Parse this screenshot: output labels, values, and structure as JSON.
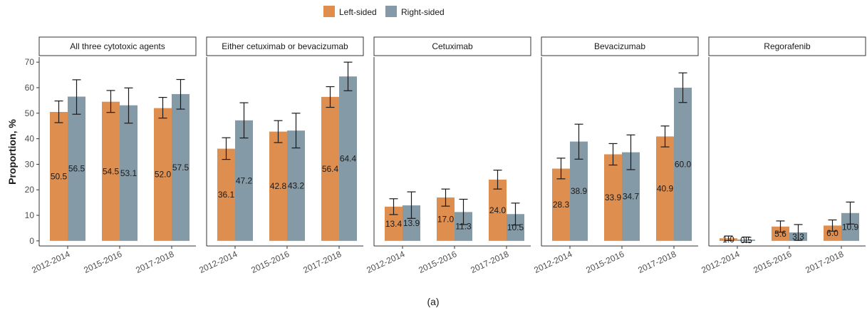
{
  "chart_data": {
    "type": "bar",
    "caption": "(a)",
    "ylabel": "Proportion, %",
    "xlabel": "",
    "ylim": [
      -2,
      72
    ],
    "yticks": [
      0,
      10,
      20,
      30,
      40,
      50,
      60,
      70
    ],
    "categories": [
      "2012-2014",
      "2015-2016",
      "2017-2018"
    ],
    "legend": {
      "position": "top",
      "entries": [
        {
          "name": "Left-sided",
          "color": "#de8f4f"
        },
        {
          "name": "Right-sided",
          "color": "#849aa7"
        }
      ]
    },
    "colors": {
      "left": "#de8f4f",
      "right": "#849aa7",
      "error_bar": "#1a1a1a",
      "axis": "#333333"
    },
    "panels": [
      {
        "title": "All three cytotoxic agents",
        "series": [
          {
            "name": "Left-sided",
            "values": [
              50.5,
              54.5,
              52.0
            ],
            "lower": [
              46.3,
              50.3,
              48.1
            ],
            "upper": [
              54.8,
              58.9,
              56.2
            ],
            "labels": [
              "50.5",
              "54.5",
              "52.0"
            ]
          },
          {
            "name": "Right-sided",
            "values": [
              56.5,
              53.1,
              57.5
            ],
            "lower": [
              49.6,
              46.1,
              51.6
            ],
            "upper": [
              63.1,
              59.9,
              63.2
            ],
            "labels": [
              "56.5",
              "53.1",
              "57.5"
            ]
          }
        ]
      },
      {
        "title": "Either cetuximab or bevacizumab",
        "series": [
          {
            "name": "Left-sided",
            "values": [
              36.1,
              42.8,
              56.4
            ],
            "lower": [
              31.9,
              38.5,
              52.3
            ],
            "upper": [
              40.4,
              47.1,
              60.4
            ],
            "labels": [
              "36.1",
              "42.8",
              "56.4"
            ]
          },
          {
            "name": "Right-sided",
            "values": [
              47.2,
              43.2,
              64.4
            ],
            "lower": [
              40.3,
              36.4,
              58.8
            ],
            "upper": [
              54.1,
              50.0,
              70.0
            ],
            "labels": [
              "47.2",
              "43.2",
              "64.4"
            ]
          }
        ]
      },
      {
        "title": "Cetuximab",
        "series": [
          {
            "name": "Left-sided",
            "values": [
              13.4,
              17.0,
              24.0
            ],
            "lower": [
              10.3,
              13.6,
              20.3
            ],
            "upper": [
              16.5,
              20.3,
              27.7
            ],
            "labels": [
              "13.4",
              "17.0",
              "24.0"
            ]
          },
          {
            "name": "Right-sided",
            "values": [
              13.9,
              11.3,
              10.5
            ],
            "lower": [
              8.8,
              6.4,
              6.2
            ],
            "upper": [
              19.2,
              16.3,
              14.8
            ],
            "labels": [
              "13.9",
              "11.3",
              "10.5"
            ]
          }
        ]
      },
      {
        "title": "Bevacizumab",
        "series": [
          {
            "name": "Left-sided",
            "values": [
              28.3,
              33.9,
              40.9
            ],
            "lower": [
              24.3,
              29.7,
              36.8
            ],
            "upper": [
              32.4,
              38.1,
              45.0
            ],
            "labels": [
              "28.3",
              "33.9",
              "40.9"
            ]
          },
          {
            "name": "Right-sided",
            "values": [
              38.9,
              34.7,
              60.0
            ],
            "lower": [
              32.0,
              27.9,
              54.2
            ],
            "upper": [
              45.7,
              41.5,
              65.8
            ],
            "labels": [
              "38.9",
              "34.7",
              "60.0"
            ]
          }
        ]
      },
      {
        "title": "Regorafenib",
        "series": [
          {
            "name": "Left-sided",
            "values": [
              1.0,
              5.6,
              6.0
            ],
            "lower": [
              0.1,
              3.4,
              3.8
            ],
            "upper": [
              1.9,
              7.8,
              8.2
            ],
            "labels": [
              "1.0",
              "5.6",
              "6.0"
            ]
          },
          {
            "name": "Right-sided",
            "values": [
              0.5,
              3.3,
              10.9
            ],
            "lower": [
              -0.5,
              0.2,
              6.6
            ],
            "upper": [
              1.5,
              6.4,
              15.2
            ],
            "labels": [
              "0.5",
              "3.3",
              "10.9"
            ]
          }
        ]
      }
    ]
  }
}
